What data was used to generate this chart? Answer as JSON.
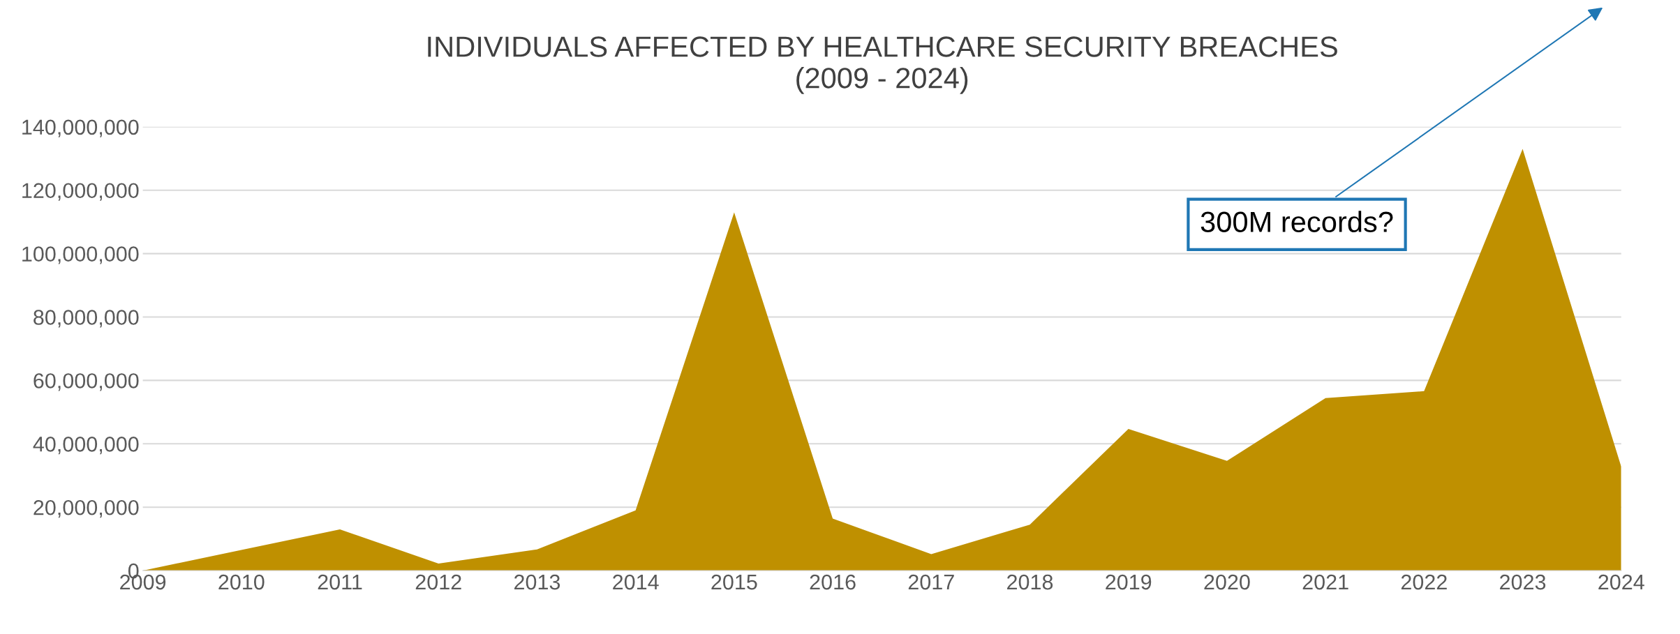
{
  "chart_data": {
    "type": "area",
    "title": "INDIVIDUALS AFFECTED BY HEALTHCARE SECURITY BREACHES\n(2009 - 2024)",
    "x": [
      2009,
      2010,
      2011,
      2012,
      2013,
      2014,
      2015,
      2016,
      2017,
      2018,
      2019,
      2020,
      2021,
      2022,
      2023,
      2024
    ],
    "series": [
      {
        "color": "#bf9000",
        "values": [
          0,
          6500000,
          13000000,
          2200000,
          6700000,
          19000000,
          113000000,
          16400000,
          5200000,
          14500000,
          44700000,
          34600000,
          54400000,
          56600000,
          133000000,
          32800000
        ]
      }
    ],
    "xlim": [
      2009,
      2024
    ],
    "xticks": [
      2009,
      2010,
      2011,
      2012,
      2013,
      2014,
      2015,
      2016,
      2017,
      2018,
      2019,
      2020,
      2021,
      2022,
      2023,
      2024
    ],
    "ylim": [
      0,
      140000000
    ],
    "yticks": [
      0,
      {
        "value": 20000000,
        "label": "20,000,000"
      },
      {
        "value": 40000000,
        "label": "40,000,000"
      },
      {
        "value": 60000000,
        "label": "60,000,000"
      },
      {
        "value": 80000000,
        "label": "80,000,000"
      },
      {
        "value": 100000000,
        "label": "100,000,000"
      },
      {
        "value": 120000000,
        "label": "120,000,000"
      },
      {
        "value": 140000000,
        "label": "140,000,000"
      }
    ],
    "grid": "y",
    "legend": false,
    "annotations": [
      "300M records?"
    ]
  }
}
